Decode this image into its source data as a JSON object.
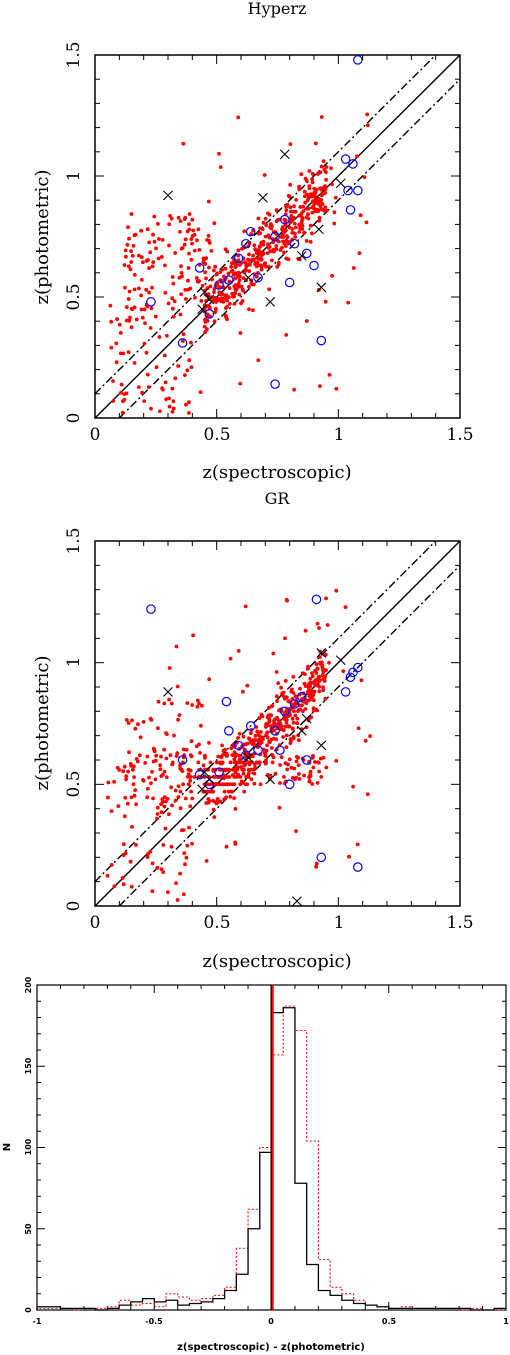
{
  "chart_data": [
    {
      "type": "scatter",
      "title": "Hyperz",
      "xlabel": "z(spectroscopic)",
      "ylabel": "z(photometric)",
      "xlim": [
        0,
        1.5
      ],
      "ylim": [
        0,
        1.5
      ],
      "xticks": [
        "0",
        "0.5",
        "1",
        "1.5"
      ],
      "yticks": [
        "0",
        "0.5",
        "1",
        "1.5"
      ],
      "colors": {
        "dots": "#ff0000",
        "circles": "#0000ff",
        "crosses": "#000000"
      },
      "lines": [
        {
          "style": "solid",
          "offset": 0
        },
        {
          "style": "dash-dot",
          "offset": 0.1
        },
        {
          "style": "dash-dot",
          "offset": -0.1
        }
      ],
      "crosses": [
        [
          0.3,
          0.92
        ],
        [
          0.45,
          0.52
        ],
        [
          0.47,
          0.49
        ],
        [
          0.72,
          0.48
        ],
        [
          0.78,
          1.09
        ],
        [
          0.69,
          0.91
        ],
        [
          0.93,
          0.54
        ],
        [
          0.92,
          0.78
        ],
        [
          1.01,
          0.97
        ],
        [
          0.44,
          0.45
        ],
        [
          0.85,
          0.67
        ],
        [
          0.63,
          0.58
        ]
      ],
      "circles": [
        [
          0.23,
          0.48
        ],
        [
          0.36,
          0.31
        ],
        [
          0.43,
          0.62
        ],
        [
          0.47,
          0.43
        ],
        [
          0.55,
          0.57
        ],
        [
          0.62,
          0.72
        ],
        [
          0.64,
          0.77
        ],
        [
          0.74,
          0.75
        ],
        [
          0.78,
          0.82
        ],
        [
          0.8,
          0.56
        ],
        [
          0.82,
          0.72
        ],
        [
          0.87,
          0.68
        ],
        [
          0.9,
          0.63
        ],
        [
          0.93,
          0.32
        ],
        [
          0.74,
          0.14
        ],
        [
          1.03,
          1.07
        ],
        [
          1.04,
          0.94
        ],
        [
          1.05,
          0.86
        ],
        [
          1.08,
          1.48
        ],
        [
          1.06,
          1.05
        ],
        [
          1.08,
          0.94
        ],
        [
          0.67,
          0.58
        ],
        [
          0.59,
          0.66
        ],
        [
          0.51,
          0.55
        ]
      ]
    },
    {
      "type": "scatter",
      "title": "GR",
      "xlabel": "z(spectroscopic)",
      "ylabel": "z(photometric)",
      "xlim": [
        0,
        1.5
      ],
      "ylim": [
        0,
        1.5
      ],
      "xticks": [
        "0",
        "0.5",
        "1",
        "1.5"
      ],
      "yticks": [
        "0",
        "0.5",
        "1",
        "1.5"
      ],
      "colors": {
        "dots": "#ff0000",
        "circles": "#0000ff",
        "crosses": "#000000"
      },
      "lines": [
        {
          "style": "solid",
          "offset": 0
        },
        {
          "style": "dash-dot",
          "offset": 0.1
        },
        {
          "style": "dash-dot",
          "offset": -0.1
        }
      ],
      "crosses": [
        [
          0.3,
          0.88
        ],
        [
          0.45,
          0.55
        ],
        [
          0.47,
          0.52
        ],
        [
          0.72,
          0.52
        ],
        [
          0.83,
          0.02
        ],
        [
          0.93,
          1.04
        ],
        [
          0.93,
          0.66
        ],
        [
          0.87,
          0.77
        ],
        [
          1.01,
          1.01
        ],
        [
          0.44,
          0.48
        ],
        [
          0.85,
          0.72
        ],
        [
          0.63,
          0.61
        ]
      ],
      "circles": [
        [
          0.23,
          1.22
        ],
        [
          0.36,
          0.6
        ],
        [
          0.43,
          0.54
        ],
        [
          0.47,
          0.5
        ],
        [
          0.55,
          0.72
        ],
        [
          0.54,
          0.84
        ],
        [
          0.62,
          0.62
        ],
        [
          0.64,
          0.74
        ],
        [
          0.74,
          0.72
        ],
        [
          0.78,
          0.8
        ],
        [
          0.8,
          0.5
        ],
        [
          0.82,
          0.83
        ],
        [
          0.87,
          0.6
        ],
        [
          0.91,
          1.26
        ],
        [
          0.93,
          0.2
        ],
        [
          1.08,
          0.16
        ],
        [
          1.03,
          0.88
        ],
        [
          1.05,
          0.94
        ],
        [
          1.06,
          0.96
        ],
        [
          1.08,
          0.98
        ],
        [
          0.67,
          0.64
        ],
        [
          0.59,
          0.66
        ],
        [
          0.51,
          0.55
        ],
        [
          0.85,
          0.86
        ],
        [
          0.76,
          0.64
        ]
      ]
    },
    {
      "type": "histogram",
      "xlabel": "z(spectroscopic) - z(photometric)",
      "ylabel": "N",
      "xlim": [
        -1,
        1
      ],
      "ylim": [
        0,
        200
      ],
      "xticks": [
        "-1",
        "-0.5",
        "0",
        "0.5",
        "1"
      ],
      "yticks": [
        "0",
        "50",
        "100",
        "150",
        "200"
      ],
      "bin_width": 0.05,
      "bin_start": -1.0,
      "series": [
        {
          "style": "solid",
          "color": "#000000",
          "values": [
            2,
            2,
            1,
            1,
            1,
            0,
            1,
            3,
            5,
            7,
            5,
            6,
            3,
            4,
            5,
            7,
            12,
            22,
            50,
            97,
            183,
            186,
            78,
            28,
            12,
            9,
            6,
            4,
            3,
            2,
            1,
            1,
            1,
            1,
            1,
            1,
            1,
            0,
            0,
            1
          ]
        },
        {
          "style": "dotted",
          "color": "#ff0000",
          "values": [
            1,
            1,
            1,
            0,
            1,
            1,
            2,
            6,
            3,
            4,
            2,
            10,
            8,
            6,
            7,
            9,
            14,
            38,
            62,
            100,
            157,
            187,
            172,
            104,
            31,
            14,
            10,
            6,
            3,
            2,
            1,
            2,
            1,
            1,
            1,
            1,
            0,
            1,
            0,
            0
          ]
        }
      ],
      "vertical_lines": [
        {
          "x": 0.0,
          "color": "#000000"
        },
        {
          "x": 0.005,
          "color": "#ff0000"
        }
      ]
    }
  ]
}
